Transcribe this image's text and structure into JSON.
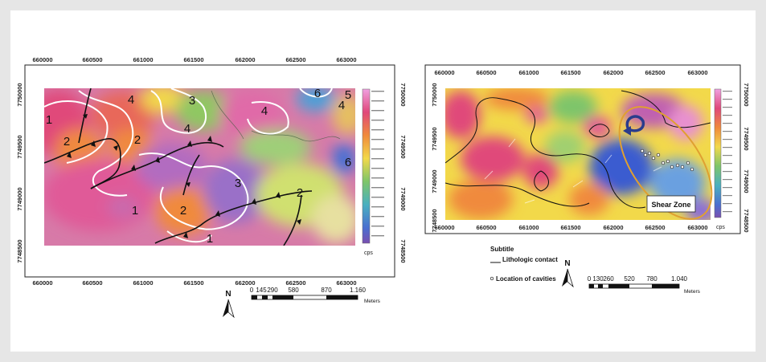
{
  "left_map": {
    "x_ticks": [
      "660000",
      "660500",
      "661000",
      "661500",
      "662000",
      "662500",
      "663000"
    ],
    "y_ticks": [
      "7750000",
      "7749500",
      "7749000",
      "7748500"
    ],
    "zones": [
      {
        "label": "1"
      },
      {
        "label": "1"
      },
      {
        "label": "1"
      },
      {
        "label": "2"
      },
      {
        "label": "2"
      },
      {
        "label": "2"
      },
      {
        "label": "2"
      },
      {
        "label": "3"
      },
      {
        "label": "3"
      },
      {
        "label": "4"
      },
      {
        "label": "4"
      },
      {
        "label": "4"
      },
      {
        "label": "4"
      },
      {
        "label": "5"
      },
      {
        "label": "6"
      },
      {
        "label": "6"
      }
    ],
    "colorbar_unit": "cps",
    "scalebar": {
      "labels": [
        "0",
        "145",
        "290",
        "580",
        "870",
        "1.160"
      ],
      "unit": "Meters"
    },
    "north_label": "N"
  },
  "right_map": {
    "x_ticks": [
      "660000",
      "660500",
      "661000",
      "661500",
      "662000",
      "662500",
      "663000"
    ],
    "y_ticks": [
      "7750000",
      "7749500",
      "7749000",
      "7748500"
    ],
    "shear_zone_label": "Shear Zone",
    "colorbar_unit": "cps",
    "legend": {
      "title": "Subtitle",
      "contact_label": "Lithologic contact",
      "cavities_label": "Location of cavities"
    },
    "scalebar": {
      "labels": [
        "0",
        "130",
        "260",
        "520",
        "780",
        "1.040"
      ],
      "unit": "Meters"
    },
    "north_label": "N"
  },
  "colors": {
    "magenta": "#d8589c",
    "orange": "#f08a3c",
    "yellow": "#f2d94a",
    "green": "#7ec56a",
    "blue": "#4a6fd0",
    "purple": "#a77bc9",
    "shear_ellipse": "#e0a030"
  }
}
